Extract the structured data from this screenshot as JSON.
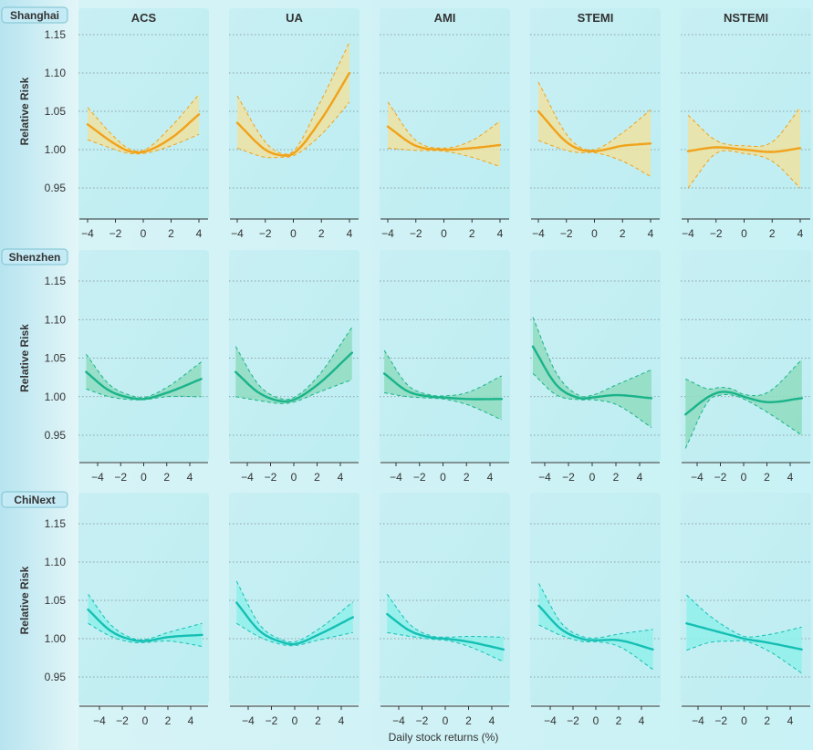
{
  "chart_data": {
    "type": "line",
    "layout": "faceted-grid",
    "xlabel": "Daily stock returns (%)",
    "ylabel": "Relative Risk",
    "ylim": [
      0.905,
      1.18
    ],
    "yticks": [
      0.95,
      1.0,
      1.05,
      1.1,
      1.15
    ],
    "xticks": [
      -4,
      -2,
      0,
      2,
      4
    ],
    "grid": "horizontal-dotted",
    "columns": [
      "ACS",
      "UA",
      "AMI",
      "STEMI",
      "NSTEMI"
    ],
    "rows": [
      {
        "label": "Shanghai",
        "color": "#f0a21a",
        "band_color": "#efe2a2",
        "xlim": [
          -4.4,
          4.4
        ],
        "panels": [
          {
            "x": [
              -4,
              -2,
              -1,
              0,
              2,
              4
            ],
            "y": [
              1.033,
              1.007,
              0.998,
              0.997,
              1.015,
              1.046
            ],
            "lower": [
              1.013,
              1.0,
              0.995,
              0.995,
              1.005,
              1.02
            ],
            "upper": [
              1.055,
              1.015,
              1.001,
              0.999,
              1.03,
              1.072
            ]
          },
          {
            "x": [
              -4,
              -2,
              -1,
              0,
              2,
              4
            ],
            "y": [
              1.035,
              1.0,
              0.993,
              0.995,
              1.04,
              1.1
            ],
            "lower": [
              1.002,
              0.99,
              0.99,
              0.992,
              1.02,
              1.062
            ],
            "upper": [
              1.07,
              1.01,
              0.996,
              0.998,
              1.065,
              1.14
            ]
          },
          {
            "x": [
              -4,
              -2,
              0,
              2,
              4
            ],
            "y": [
              1.03,
              1.005,
              1.0,
              1.002,
              1.006
            ],
            "lower": [
              1.002,
              0.999,
              0.998,
              0.99,
              0.978
            ],
            "upper": [
              1.062,
              1.012,
              1.002,
              1.012,
              1.037
            ]
          },
          {
            "x": [
              -4,
              -2,
              -1,
              0,
              2,
              4
            ],
            "y": [
              1.05,
              1.01,
              1.0,
              0.998,
              1.005,
              1.008
            ],
            "lower": [
              1.012,
              0.999,
              0.996,
              0.996,
              0.985,
              0.965
            ],
            "upper": [
              1.088,
              1.02,
              1.003,
              1.0,
              1.022,
              1.052
            ]
          },
          {
            "x": [
              -4,
              -2,
              0,
              2,
              4
            ],
            "y": [
              0.998,
              1.003,
              1.0,
              0.997,
              1.002
            ],
            "lower": [
              0.95,
              0.995,
              0.995,
              0.985,
              0.95
            ],
            "upper": [
              1.045,
              1.012,
              1.005,
              1.01,
              1.055
            ]
          }
        ]
      },
      {
        "label": "Shenzhen",
        "color": "#1ab38a",
        "band_color": "#8fdcc0",
        "xlim": [
          -5.5,
          5.5
        ],
        "panels": [
          {
            "x": [
              -5,
              -3,
              -1,
              0,
              2,
              5
            ],
            "y": [
              1.032,
              1.008,
              0.998,
              0.997,
              1.005,
              1.023
            ],
            "lower": [
              1.01,
              1.0,
              0.996,
              0.996,
              1.0,
              1.0
            ],
            "upper": [
              1.055,
              1.016,
              1.001,
              0.999,
              1.012,
              1.045
            ]
          },
          {
            "x": [
              -5,
              -3,
              -1,
              0,
              2,
              5
            ],
            "y": [
              1.032,
              1.005,
              0.994,
              0.996,
              1.015,
              1.057
            ],
            "lower": [
              1.0,
              0.995,
              0.991,
              0.993,
              1.005,
              1.022
            ],
            "upper": [
              1.065,
              1.015,
              0.997,
              0.999,
              1.025,
              1.09
            ]
          },
          {
            "x": [
              -5,
              -3,
              -1,
              0,
              2,
              5
            ],
            "y": [
              1.03,
              1.007,
              1.0,
              0.999,
              0.997,
              0.997
            ],
            "lower": [
              1.005,
              1.0,
              0.998,
              0.997,
              0.99,
              0.97
            ],
            "upper": [
              1.06,
              1.015,
              1.002,
              1.001,
              1.005,
              1.027
            ]
          },
          {
            "x": [
              -5,
              -3,
              -1,
              0,
              2,
              5
            ],
            "y": [
              1.065,
              1.015,
              0.998,
              0.999,
              1.002,
              0.998
            ],
            "lower": [
              1.03,
              1.002,
              0.996,
              0.996,
              0.99,
              0.96
            ],
            "upper": [
              1.103,
              1.03,
              1.001,
              1.002,
              1.015,
              1.035
            ]
          },
          {
            "x": [
              -5,
              -3,
              -2,
              -1,
              0,
              2,
              5
            ],
            "y": [
              0.977,
              1.0,
              1.006,
              1.005,
              1.0,
              0.993,
              0.998
            ],
            "lower": [
              0.933,
              0.995,
              1.002,
              1.002,
              0.997,
              0.98,
              0.95
            ],
            "upper": [
              1.023,
              1.01,
              1.012,
              1.01,
              1.003,
              1.005,
              1.048
            ]
          }
        ]
      },
      {
        "label": "ChiNext",
        "color": "#15bfb4",
        "band_color": "#8ff0ea",
        "xlim": [
          -5.5,
          5.5
        ],
        "panels": [
          {
            "x": [
              -5,
              -3,
              -1,
              0,
              2,
              5
            ],
            "y": [
              1.038,
              1.01,
              0.998,
              0.997,
              1.002,
              1.005
            ],
            "lower": [
              1.02,
              1.003,
              0.995,
              0.995,
              0.997,
              0.99
            ],
            "upper": [
              1.058,
              1.018,
              1.0,
              0.999,
              1.008,
              1.02
            ]
          },
          {
            "x": [
              -5,
              -3,
              -1,
              0,
              2,
              5
            ],
            "y": [
              1.047,
              1.01,
              0.995,
              0.993,
              1.005,
              1.028
            ],
            "lower": [
              1.02,
              1.002,
              0.992,
              0.991,
              0.998,
              1.008
            ],
            "upper": [
              1.075,
              1.018,
              0.998,
              0.996,
              1.012,
              1.048
            ]
          },
          {
            "x": [
              -5,
              -3,
              -1,
              0,
              2,
              5
            ],
            "y": [
              1.032,
              1.01,
              1.001,
              1.0,
              0.996,
              0.986
            ],
            "lower": [
              1.008,
              1.003,
              0.999,
              0.998,
              0.99,
              0.97
            ],
            "upper": [
              1.058,
              1.018,
              1.003,
              1.002,
              1.003,
              1.002
            ]
          },
          {
            "x": [
              -5,
              -3,
              -1,
              0,
              2,
              5
            ],
            "y": [
              1.043,
              1.012,
              0.999,
              0.998,
              0.998,
              0.986
            ],
            "lower": [
              1.018,
              1.004,
              0.996,
              0.996,
              0.99,
              0.96
            ],
            "upper": [
              1.072,
              1.02,
              1.002,
              1.001,
              1.006,
              1.012
            ]
          },
          {
            "x": [
              -5,
              -3,
              -1,
              0,
              2,
              5
            ],
            "y": [
              1.02,
              1.012,
              1.004,
              1.0,
              0.995,
              0.986
            ],
            "lower": [
              0.985,
              0.995,
              0.997,
              0.997,
              0.985,
              0.955
            ],
            "upper": [
              1.057,
              1.03,
              1.01,
              1.003,
              1.005,
              1.015
            ]
          }
        ]
      }
    ]
  }
}
